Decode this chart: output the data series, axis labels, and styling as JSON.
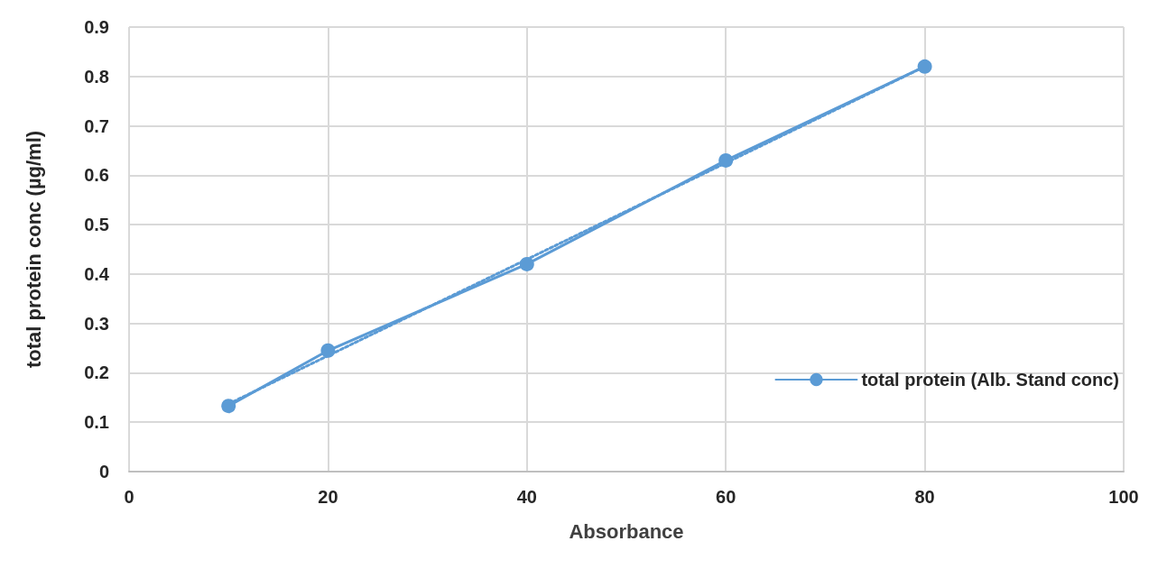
{
  "chart_data": {
    "type": "line",
    "xlabel": "Absorbance",
    "ylabel": "total protein conc (µg/ml)",
    "x": [
      10,
      20,
      40,
      60,
      80
    ],
    "series": [
      {
        "name": "total protein (Alb. Stand conc)",
        "color": "#5b9bd5",
        "values": [
          0.133,
          0.245,
          0.42,
          0.63,
          0.82
        ],
        "marker": "circle",
        "line_style": "solid"
      },
      {
        "type": "line",
        "color": "#5b9bd5",
        "x": [
          10,
          80
        ],
        "values": [
          0.137,
          0.82
        ],
        "marker": "none",
        "line_style": "dotted"
      }
    ],
    "xlim": [
      0,
      100
    ],
    "xticks": [
      0,
      20,
      40,
      60,
      80,
      100
    ],
    "ylim": [
      0,
      0.9
    ],
    "yticks": [
      0,
      0.1,
      0.2,
      0.3,
      0.4,
      0.5,
      0.6,
      0.7,
      0.8,
      0.9
    ],
    "grid": true,
    "legend": "right"
  }
}
